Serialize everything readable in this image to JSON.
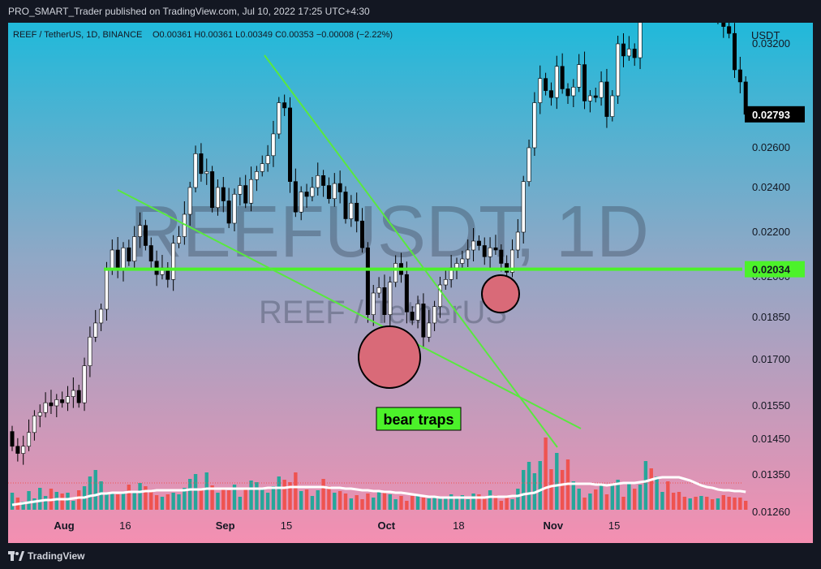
{
  "header": {
    "text": "PRO_SMART_Trader published on TradingView.com, Jul 10, 2022 17:25 UTC+4:30"
  },
  "footer": {
    "brand": "TradingView"
  },
  "colors": {
    "up": "#ffffff",
    "down": "#000000",
    "vol_up": "#26a69a",
    "vol_down": "#ef5350",
    "trendline": "#59e83f",
    "level": "#4cf22a",
    "ma": "#ffffff",
    "bg_top": "#20b9da",
    "bg_bottom": "#f48fb1",
    "circle": "#d96a78"
  },
  "chart_data": {
    "type": "candlestick",
    "symbol_line": "REEF / TetherUS, 1D, BINANCE",
    "ohlc_text": "O0.00361 H0.00361 L0.00349 C0.00353 −0.00008 (−2.22%)",
    "watermark": {
      "symbol": "REEFUSDT, 1D",
      "description": "REEF / TetherUS"
    },
    "y_axis": {
      "unit": "USDT",
      "ticks": [
        0.0126,
        0.0135,
        0.0145,
        0.0155,
        0.017,
        0.0185,
        0.02,
        0.022,
        0.024,
        0.026,
        0.032
      ]
    },
    "price_labels": [
      {
        "label": "0.02793",
        "value": 0.02793,
        "style": "dark"
      },
      {
        "label": "0.02034",
        "value": 0.02034,
        "style": "green"
      }
    ],
    "x_axis": {
      "ticks": [
        "Aug",
        "16",
        "Sep",
        "15",
        "Oct",
        "18",
        "Nov",
        "15"
      ],
      "tick_day": [
        0,
        11,
        29,
        40,
        58,
        71,
        88,
        99
      ]
    },
    "horizontal_level": 0.02034,
    "annotation": "bear traps",
    "closes": [
      0.0143,
      0.0141,
      0.0143,
      0.0147,
      0.0152,
      0.0153,
      0.0156,
      0.0155,
      0.0157,
      0.0156,
      0.0158,
      0.016,
      0.0156,
      0.0168,
      0.0178,
      0.0183,
      0.0188,
      0.0203,
      0.0212,
      0.0203,
      0.0213,
      0.0207,
      0.0218,
      0.0223,
      0.0214,
      0.0207,
      0.0201,
      0.0204,
      0.0199,
      0.0215,
      0.0218,
      0.0228,
      0.024,
      0.0257,
      0.0247,
      0.0248,
      0.0231,
      0.024,
      0.0234,
      0.0224,
      0.0237,
      0.0241,
      0.0233,
      0.0244,
      0.0248,
      0.0252,
      0.0256,
      0.0268,
      0.0286,
      0.0283,
      0.0243,
      0.0229,
      0.0238,
      0.0236,
      0.024,
      0.0246,
      0.0241,
      0.0235,
      0.0242,
      0.0238,
      0.0226,
      0.0233,
      0.0225,
      0.0213,
      0.0186,
      0.0194,
      0.0196,
      0.0186,
      0.0198,
      0.0206,
      0.0201,
      0.0187,
      0.0184,
      0.019,
      0.0178,
      0.0183,
      0.0189,
      0.0197,
      0.0199,
      0.0204,
      0.0206,
      0.0208,
      0.0212,
      0.0216,
      0.0214,
      0.0209,
      0.0213,
      0.0212,
      0.0206,
      0.0202,
      0.0212,
      0.022,
      0.0243,
      0.026,
      0.0286,
      0.03,
      0.0293,
      0.0289,
      0.0307,
      0.0294,
      0.029,
      0.0295,
      0.0308,
      0.0287,
      0.029,
      0.0289,
      0.0298,
      0.0278,
      0.029,
      0.032,
      0.0313,
      0.0317,
      0.0312,
      0.034,
      0.0365,
      0.0362,
      0.0366,
      0.037,
      0.0364,
      0.036,
      0.0356,
      0.0352,
      0.0354,
      0.0337,
      0.0344,
      0.0342,
      0.0336,
      0.0338,
      0.033,
      0.0326,
      0.0305,
      0.0298,
      0.02793
    ],
    "volume_scale_max": 1.0,
    "volumes": [
      0.21,
      0.15,
      0.1,
      0.23,
      0.14,
      0.27,
      0.17,
      0.26,
      0.22,
      0.2,
      0.21,
      0.11,
      0.24,
      0.29,
      0.41,
      0.49,
      0.35,
      0.21,
      0.21,
      0.19,
      0.2,
      0.31,
      0.21,
      0.33,
      0.29,
      0.24,
      0.18,
      0.16,
      0.19,
      0.21,
      0.19,
      0.27,
      0.38,
      0.44,
      0.26,
      0.46,
      0.3,
      0.21,
      0.26,
      0.24,
      0.31,
      0.16,
      0.27,
      0.36,
      0.34,
      0.25,
      0.21,
      0.29,
      0.41,
      0.37,
      0.34,
      0.46,
      0.23,
      0.25,
      0.17,
      0.24,
      0.38,
      0.29,
      0.21,
      0.23,
      0.2,
      0.14,
      0.18,
      0.13,
      0.2,
      0.15,
      0.22,
      0.23,
      0.19,
      0.13,
      0.17,
      0.11,
      0.17,
      0.18,
      0.15,
      0.14,
      0.16,
      0.14,
      0.16,
      0.19,
      0.15,
      0.18,
      0.13,
      0.2,
      0.19,
      0.16,
      0.24,
      0.18,
      0.11,
      0.15,
      0.13,
      0.26,
      0.49,
      0.59,
      0.45,
      0.6,
      0.89,
      0.5,
      0.7,
      0.49,
      0.62,
      0.35,
      0.26,
      0.15,
      0.2,
      0.25,
      0.3,
      0.19,
      0.32,
      0.37,
      0.16,
      0.34,
      0.26,
      0.31,
      0.6,
      0.51,
      0.41,
      0.22,
      0.35,
      0.21,
      0.22,
      0.16,
      0.14,
      0.16,
      0.17,
      0.16,
      0.13,
      0.14,
      0.18,
      0.16,
      0.15,
      0.15,
      0.11
    ],
    "ma_volume": [
      0.06,
      0.07,
      0.08,
      0.09,
      0.1,
      0.11,
      0.12,
      0.12,
      0.13,
      0.13,
      0.13,
      0.14,
      0.15,
      0.15,
      0.17,
      0.18,
      0.2,
      0.2,
      0.21,
      0.21,
      0.21,
      0.22,
      0.22,
      0.22,
      0.23,
      0.23,
      0.24,
      0.24,
      0.24,
      0.24,
      0.24,
      0.24,
      0.25,
      0.25,
      0.25,
      0.26,
      0.26,
      0.26,
      0.26,
      0.26,
      0.26,
      0.26,
      0.26,
      0.26,
      0.26,
      0.26,
      0.27,
      0.27,
      0.27,
      0.27,
      0.28,
      0.28,
      0.28,
      0.28,
      0.28,
      0.28,
      0.28,
      0.27,
      0.27,
      0.27,
      0.26,
      0.26,
      0.25,
      0.24,
      0.24,
      0.23,
      0.23,
      0.22,
      0.22,
      0.21,
      0.21,
      0.2,
      0.19,
      0.18,
      0.17,
      0.16,
      0.16,
      0.15,
      0.15,
      0.15,
      0.15,
      0.15,
      0.15,
      0.15,
      0.15,
      0.15,
      0.16,
      0.16,
      0.16,
      0.16,
      0.17,
      0.17,
      0.19,
      0.2,
      0.21,
      0.24,
      0.27,
      0.29,
      0.3,
      0.31,
      0.32,
      0.32,
      0.32,
      0.32,
      0.32,
      0.31,
      0.31,
      0.3,
      0.31,
      0.32,
      0.33,
      0.33,
      0.33,
      0.34,
      0.35,
      0.37,
      0.39,
      0.4,
      0.4,
      0.4,
      0.4,
      0.38,
      0.36,
      0.33,
      0.3,
      0.28,
      0.27,
      0.25,
      0.24,
      0.24,
      0.23,
      0.23,
      0.22
    ]
  }
}
